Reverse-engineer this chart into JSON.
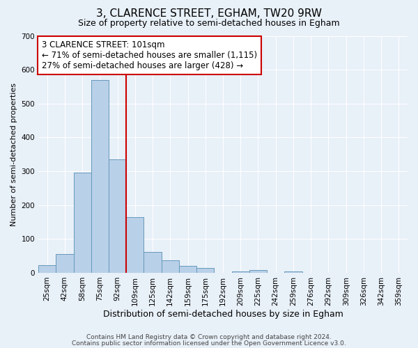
{
  "title": "3, CLARENCE STREET, EGHAM, TW20 9RW",
  "subtitle": "Size of property relative to semi-detached houses in Egham",
  "xlabel": "Distribution of semi-detached houses by size in Egham",
  "ylabel": "Number of semi-detached properties",
  "bar_labels": [
    "25sqm",
    "42sqm",
    "58sqm",
    "75sqm",
    "92sqm",
    "109sqm",
    "125sqm",
    "142sqm",
    "159sqm",
    "175sqm",
    "192sqm",
    "209sqm",
    "225sqm",
    "242sqm",
    "259sqm",
    "276sqm",
    "292sqm",
    "309sqm",
    "326sqm",
    "342sqm",
    "359sqm"
  ],
  "bar_values": [
    22,
    55,
    295,
    570,
    335,
    165,
    62,
    37,
    20,
    15,
    0,
    5,
    8,
    0,
    5,
    0,
    0,
    0,
    0,
    0,
    0
  ],
  "bar_color": "#b8d0e8",
  "bar_edge_color": "#6699bb",
  "property_line_color": "#cc0000",
  "annotation_text": "3 CLARENCE STREET: 101sqm\n← 71% of semi-detached houses are smaller (1,115)\n27% of semi-detached houses are larger (428) →",
  "annotation_box_color": "#ffffff",
  "annotation_box_edge_color": "#cc0000",
  "ylim": [
    0,
    700
  ],
  "yticks": [
    0,
    100,
    200,
    300,
    400,
    500,
    600,
    700
  ],
  "footer_line1": "Contains HM Land Registry data © Crown copyright and database right 2024.",
  "footer_line2": "Contains public sector information licensed under the Open Government Licence v3.0.",
  "background_color": "#e8f0f8",
  "plot_bg_color": "#e8f0f8",
  "grid_color": "#ffffff",
  "title_fontsize": 11,
  "subtitle_fontsize": 9,
  "xlabel_fontsize": 9,
  "ylabel_fontsize": 8,
  "tick_fontsize": 7.5,
  "annotation_fontsize": 8.5,
  "footer_fontsize": 6.5
}
